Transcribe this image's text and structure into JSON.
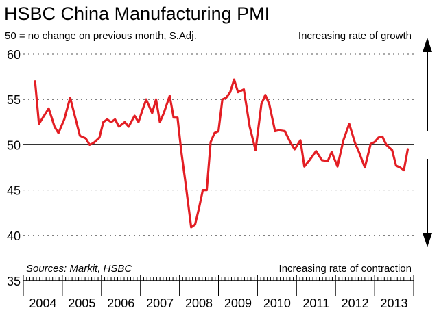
{
  "chart_data": {
    "type": "line",
    "title": "HSBC China Manufacturing PMI",
    "subtitle": "50 = no change on previous month, S.Adj.",
    "annotations": {
      "top": "Increasing rate of growth",
      "bottom": "Increasing rate of contraction",
      "source": "Sources: Markit, HSBC"
    },
    "ylim": [
      35,
      60
    ],
    "yticks": [
      35,
      40,
      45,
      50,
      55,
      60
    ],
    "x_start": 2004.0,
    "x_end": 2014.0,
    "x_tick_labels": [
      "2004",
      "2005",
      "2006",
      "2007",
      "2008",
      "2009",
      "2010",
      "2011",
      "2012",
      "2013"
    ],
    "reference_line": 50,
    "grid": "dotted horizontal",
    "series_color": "#e31e24",
    "series": [
      {
        "x": [
          2004.3,
          2004.4,
          2004.5,
          2004.65,
          2004.8,
          2004.9,
          2005.05,
          2005.2,
          2005.3,
          2005.45,
          2005.6,
          2005.7,
          2005.8,
          2005.95,
          2006.05,
          2006.15,
          2006.25,
          2006.35,
          2006.45,
          2006.6,
          2006.7,
          2006.85,
          2006.95,
          2007.05,
          2007.15,
          2007.3,
          2007.4,
          2007.5,
          2007.6,
          2007.75,
          2007.85,
          2007.95,
          2008.05,
          2008.15,
          2008.3,
          2008.4,
          2008.5,
          2008.6,
          2008.7,
          2008.8,
          2008.9,
          2009.0,
          2009.1,
          2009.2,
          2009.3,
          2009.4,
          2009.5,
          2009.65,
          2009.8,
          2009.95,
          2010.1,
          2010.2,
          2010.3,
          2010.45,
          2010.55,
          2010.7,
          2010.85,
          2010.95,
          2011.1,
          2011.2,
          2011.35,
          2011.5,
          2011.65,
          2011.8,
          2011.9,
          2012.05,
          2012.2,
          2012.35,
          2012.5,
          2012.6,
          2012.75,
          2012.9,
          2013.0,
          2013.1,
          2013.2,
          2013.3,
          2013.45,
          2013.55,
          2013.65,
          2013.75,
          2013.85
        ],
        "values": [
          57.0,
          52.3,
          53.0,
          54.0,
          52.0,
          51.3,
          52.8,
          55.2,
          53.5,
          51.0,
          50.7,
          50.0,
          50.2,
          50.8,
          52.5,
          52.8,
          52.5,
          52.8,
          52.0,
          52.5,
          52.0,
          53.2,
          52.5,
          53.8,
          55.0,
          53.5,
          55.0,
          52.5,
          53.5,
          55.4,
          53.0,
          53.0,
          49.2,
          46.0,
          40.9,
          41.2,
          43.0,
          45.0,
          45.0,
          50.3,
          51.3,
          51.5,
          55.0,
          55.2,
          55.8,
          57.2,
          55.8,
          56.1,
          52.0,
          49.4,
          54.5,
          55.5,
          54.5,
          51.5,
          51.6,
          51.5,
          50.2,
          49.5,
          50.5,
          47.6,
          48.4,
          49.3,
          48.3,
          48.2,
          49.2,
          47.6,
          50.5,
          52.3,
          50.2,
          49.2,
          47.5,
          50.1,
          50.3,
          50.8,
          50.9,
          50.0,
          49.4,
          47.7,
          47.5,
          47.2,
          49.5
        ]
      }
    ]
  }
}
